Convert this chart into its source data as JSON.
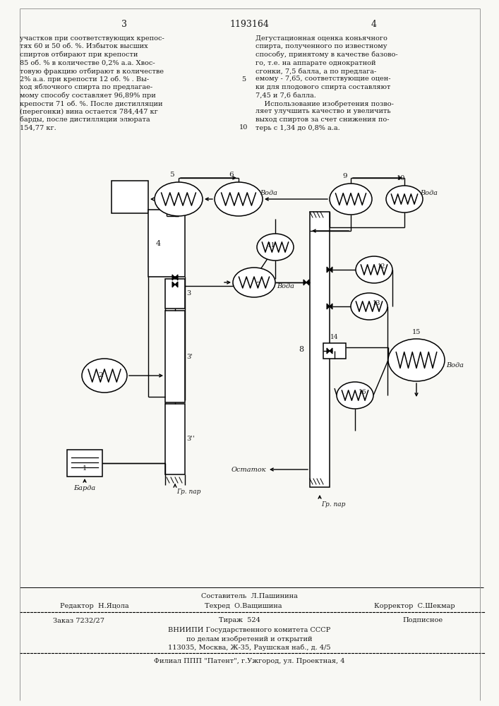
{
  "page_color": "#f8f8f4",
  "text_color": "#1a1a1a",
  "page_num_left": "3",
  "patent_num": "1193164",
  "page_num_right": "4",
  "left_text_lines": [
    "участков при соответствующих крепос-",
    "тях 60 и 50 об. %. Избыток высших",
    "спиртов отбирают при крепости",
    "85 об. % в количестве 0,2% а.а. Хвос-",
    "товую фракцию отбирают в количестве",
    "2% а.а. при крепости 12 об. % . Вы-",
    "ход яблочного спирта по предлагае-",
    "мому способу составляет 96,89% при",
    "крепости 71 об. %. После дистилляции",
    "(перегонки) вина остается 784,447 кг",
    "барды, после дистилляции элюрата",
    "154,77 кг."
  ],
  "right_text_lines": [
    "Дегустационная оценка коньячного",
    "спирта, полученного по известному",
    "способу, принятому в качестве базово-",
    "го, т.е. на аппарате однократной",
    "сгонки, 7,5 балла, а по предлага-",
    "емому - 7,65, соответствующие оцен-",
    "ки для плодового спирта составляют",
    "7,45 и 7,6 балла.",
    "    Использование изобретения позво-",
    "ляет улучшить качество и увеличить",
    "выход спиртов за счет снижения по-",
    "терь с 1,34 до 0,8% а.а."
  ],
  "line5": "5",
  "line10": "10",
  "footer_editor": "Редактор  Н.Яцола",
  "footer_compiler": "Составитель  Л.Пашинина",
  "footer_tech": "Техред  О.Ващишина",
  "footer_corrector": "Корректор  С.Шекмар",
  "footer_order": "Заказ 7232/27",
  "footer_circulation": "Тираж  524",
  "footer_subscription": "Подписное",
  "footer_vniiipi": "ВНИИПИ Государственного комитета СССР",
  "footer_affairs": "по делам изобретений и открытий",
  "footer_address": "113035, Москва, Ж-35, Раушская наб., д. 4/5",
  "footer_branch": "Филиал ППП \"Патент\", г.Ужгород, ул. Проектная, 4"
}
